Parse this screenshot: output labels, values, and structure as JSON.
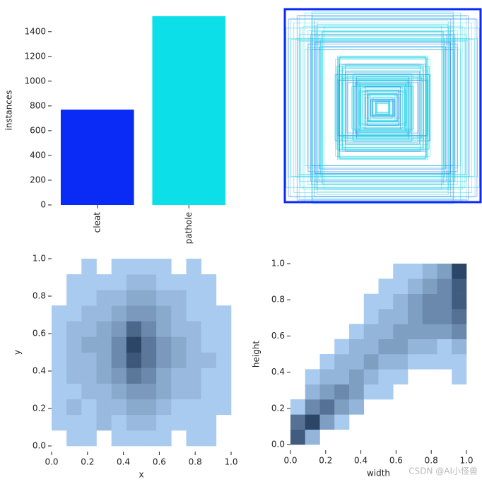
{
  "chart_data": [
    {
      "type": "bar",
      "ylabel": "instances",
      "categories": [
        "cleat",
        "pathole"
      ],
      "values": [
        770,
        1525
      ],
      "colors": [
        "#0a2af5",
        "#0ddfe8"
      ],
      "ylim": [
        0,
        1530
      ],
      "yticks": [
        0,
        200,
        400,
        600,
        800,
        1000,
        1200,
        1400
      ]
    },
    {
      "type": "histogram2d",
      "xlabel": "x",
      "ylabel": "y",
      "color_light": "#a8cbef",
      "color_dark": "#2c4668",
      "xlim": [
        0,
        1
      ],
      "ylim": [
        0,
        1
      ],
      "xticks": [
        {
          "value": 0,
          "label": "0.0"
        },
        {
          "value": 0.2,
          "label": "0.2"
        },
        {
          "value": 0.4,
          "label": "0.4"
        },
        {
          "value": 0.6,
          "label": "0.6"
        },
        {
          "value": 0.8,
          "label": "0.8"
        },
        {
          "value": 1,
          "label": "1.0"
        }
      ],
      "yticks": [
        {
          "value": 0,
          "label": "0.0"
        },
        {
          "value": 0.2,
          "label": "0.2"
        },
        {
          "value": 0.4,
          "label": "0.4"
        },
        {
          "value": 0.6,
          "label": "0.6"
        },
        {
          "value": 0.8,
          "label": "0.8"
        },
        {
          "value": 1,
          "label": "1.0"
        }
      ],
      "counts": [
        [
          0,
          1,
          1,
          0,
          1,
          1,
          1,
          1,
          0,
          1,
          1,
          0
        ],
        [
          1,
          1,
          1,
          2,
          1,
          2,
          2,
          1,
          1,
          1,
          1,
          0
        ],
        [
          1,
          2,
          1,
          2,
          2,
          3,
          3,
          2,
          1,
          1,
          1,
          1
        ],
        [
          1,
          1,
          2,
          2,
          3,
          4,
          4,
          3,
          2,
          2,
          1,
          1
        ],
        [
          1,
          2,
          2,
          3,
          4,
          6,
          5,
          3,
          2,
          2,
          1,
          1
        ],
        [
          1,
          2,
          2,
          3,
          5,
          8,
          6,
          4,
          3,
          2,
          2,
          1
        ],
        [
          1,
          2,
          3,
          3,
          5,
          9,
          6,
          4,
          3,
          2,
          1,
          1
        ],
        [
          1,
          2,
          2,
          3,
          4,
          7,
          5,
          3,
          2,
          2,
          1,
          1
        ],
        [
          1,
          1,
          2,
          2,
          3,
          4,
          4,
          3,
          2,
          1,
          1,
          1
        ],
        [
          0,
          1,
          1,
          2,
          2,
          3,
          3,
          2,
          2,
          1,
          1,
          0
        ],
        [
          0,
          1,
          1,
          1,
          1,
          2,
          2,
          1,
          1,
          1,
          1,
          0
        ],
        [
          0,
          0,
          1,
          0,
          1,
          1,
          1,
          1,
          0,
          1,
          0,
          0
        ]
      ]
    },
    {
      "type": "histogram2d",
      "xlabel": "width",
      "ylabel": "height",
      "color_light": "#a8cbef",
      "color_dark": "#2c4668",
      "xlim": [
        0,
        1
      ],
      "ylim": [
        0,
        1
      ],
      "xticks": [
        {
          "value": 0,
          "label": "0.0"
        },
        {
          "value": 0.2,
          "label": "0.2"
        },
        {
          "value": 0.4,
          "label": "0.4"
        },
        {
          "value": 0.6,
          "label": "0.6"
        },
        {
          "value": 0.8,
          "label": "0.8"
        },
        {
          "value": 1,
          "label": "1.0"
        }
      ],
      "yticks": [
        {
          "value": 0,
          "label": "0.0"
        },
        {
          "value": 0.2,
          "label": "0.2"
        },
        {
          "value": 0.4,
          "label": "0.4"
        },
        {
          "value": 0.6,
          "label": "0.6"
        },
        {
          "value": 0.8,
          "label": "0.8"
        },
        {
          "value": 1,
          "label": "1.0"
        }
      ],
      "counts": [
        [
          6,
          2,
          0,
          0,
          0,
          0,
          0,
          0,
          0,
          0,
          0,
          0
        ],
        [
          5,
          7,
          3,
          1,
          0,
          0,
          0,
          0,
          0,
          0,
          0,
          0
        ],
        [
          1,
          4,
          5,
          3,
          2,
          0,
          0,
          0,
          0,
          0,
          0,
          0
        ],
        [
          0,
          2,
          3,
          4,
          3,
          1,
          1,
          0,
          0,
          0,
          0,
          0
        ],
        [
          0,
          1,
          2,
          2,
          3,
          2,
          1,
          1,
          0,
          0,
          0,
          1
        ],
        [
          0,
          0,
          1,
          2,
          2,
          3,
          2,
          2,
          1,
          1,
          1,
          1
        ],
        [
          0,
          0,
          0,
          1,
          2,
          2,
          3,
          3,
          2,
          2,
          1,
          2
        ],
        [
          0,
          0,
          0,
          0,
          1,
          2,
          2,
          3,
          3,
          3,
          3,
          4
        ],
        [
          0,
          0,
          0,
          0,
          0,
          1,
          2,
          2,
          3,
          4,
          4,
          5
        ],
        [
          0,
          0,
          0,
          0,
          0,
          1,
          1,
          2,
          3,
          4,
          4,
          6
        ],
        [
          0,
          0,
          0,
          0,
          0,
          0,
          1,
          1,
          2,
          3,
          4,
          6
        ],
        [
          0,
          0,
          0,
          0,
          0,
          0,
          0,
          1,
          1,
          2,
          3,
          7
        ]
      ]
    }
  ],
  "watermark": "CSDN @AI小怪兽"
}
